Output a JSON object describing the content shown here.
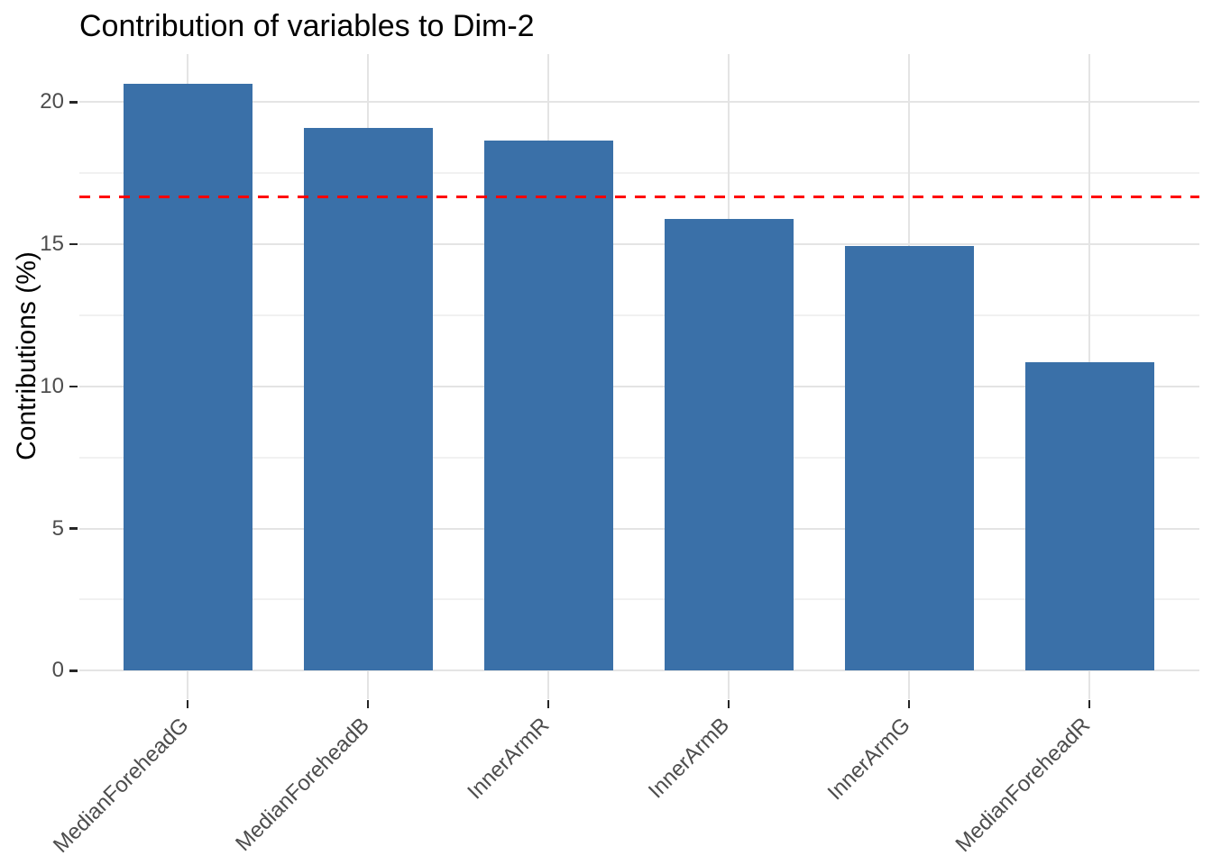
{
  "title": "Contribution of variables to Dim-2",
  "chart_data": {
    "type": "bar",
    "title": "Contribution of variables to Dim-2",
    "xlabel": "",
    "ylabel": "Contributions (%)",
    "categories": [
      "MedianForeheadG",
      "MedianForeheadB",
      "InnerArmR",
      "InnerArmB",
      "InnerArmG",
      "MedianForeheadR"
    ],
    "values": [
      20.65,
      19.1,
      18.65,
      15.9,
      14.95,
      10.85
    ],
    "yticks": [
      "0",
      "5",
      "10",
      "15",
      "20"
    ],
    "ytick_values": [
      0,
      5,
      10,
      15,
      20
    ],
    "minor_gridline_values": [
      2.5,
      7.5,
      12.5,
      17.5
    ],
    "ylim": [
      -1.03,
      21.7
    ],
    "reference_line": {
      "value": 16.67,
      "style": "dashed",
      "color": "#FF0000"
    },
    "x_label_rotation_deg": 45,
    "legend": "none",
    "grid": true,
    "colors": {
      "bar_fill": "#3A70A8",
      "major_gridline": "#E4E4E4",
      "minor_gridline": "#F1F1F1",
      "axis_tick": "#262626",
      "axis_text": "#4D4D4D",
      "title_text": "#000000",
      "background": "#FFFFFF"
    }
  }
}
